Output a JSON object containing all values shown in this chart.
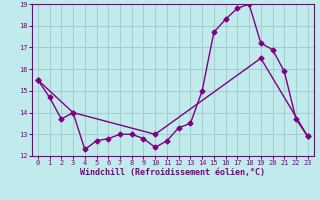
{
  "title": "",
  "xlabel": "Windchill (Refroidissement éolien,°C)",
  "ylabel": "",
  "xlim": [
    -0.5,
    23.5
  ],
  "ylim": [
    12,
    19
  ],
  "yticks": [
    12,
    13,
    14,
    15,
    16,
    17,
    18,
    19
  ],
  "xticks": [
    0,
    1,
    2,
    3,
    4,
    5,
    6,
    7,
    8,
    9,
    10,
    11,
    12,
    13,
    14,
    15,
    16,
    17,
    18,
    19,
    20,
    21,
    22,
    23
  ],
  "bg_color": "#c0eaec",
  "grid_color": "#a0c8ca",
  "line_color": "#800080",
  "line1_x": [
    0,
    1,
    2,
    3,
    4,
    5,
    6,
    7,
    8,
    9,
    10,
    11,
    12,
    13,
    14,
    15,
    16,
    17,
    18,
    19,
    20,
    21,
    22,
    23
  ],
  "line1_y": [
    15.5,
    14.7,
    13.7,
    14.0,
    12.3,
    12.7,
    12.8,
    13.0,
    13.0,
    12.8,
    12.4,
    12.7,
    13.3,
    13.5,
    15.0,
    17.7,
    18.3,
    18.8,
    19.0,
    17.2,
    16.9,
    15.9,
    13.7,
    12.9
  ],
  "line2_x": [
    0,
    3,
    10,
    19,
    23
  ],
  "line2_y": [
    15.5,
    14.0,
    13.0,
    16.5,
    12.9
  ],
  "marker_size": 2.5,
  "line_width": 1.0,
  "tick_fontsize": 5.0,
  "xlabel_fontsize": 6.0
}
